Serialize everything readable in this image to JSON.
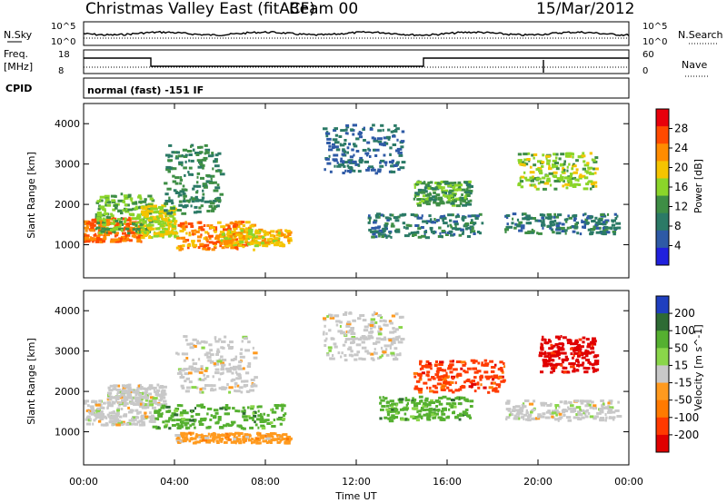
{
  "header": {
    "title": "Christmas Valley East (fitACF)",
    "beam": "Beam 00",
    "date": "15/Mar/2012"
  },
  "strips": {
    "nsky_label": "N.Sky",
    "nsearch_label": "N.Search",
    "noise_ticks": [
      "10^5",
      "10^0"
    ],
    "noise_ticks_right": [
      "10^5",
      "10^0"
    ],
    "freq_label": "Freq.",
    "freq_unit": "[MHz]",
    "freq_ticks": [
      "18",
      "8"
    ],
    "nave_label": "Nave",
    "nave_ticks": [
      "60",
      "0"
    ],
    "cpid_label": "CPID",
    "cpid_text": "normal (fast) -151 IF"
  },
  "chart_data": [
    {
      "type": "heatmap",
      "name": "power",
      "ylabel": "Slant Range [km]",
      "yticks": [
        "4000",
        "3000",
        "2000",
        "1000"
      ],
      "ylim": [
        180,
        4500
      ],
      "colorbar": {
        "label": "Power [dB]",
        "ticks": [
          "28",
          "24",
          "20",
          "16",
          "12",
          "8",
          "4"
        ],
        "colors": [
          "#e8000b",
          "#ff4a00",
          "#ff8c00",
          "#f5c400",
          "#8bd52a",
          "#3e8e45",
          "#2b7a66",
          "#2e5aa6",
          "#2020dd"
        ]
      },
      "regions": [
        {
          "t": [
            0.0,
            2.5
          ],
          "r": [
            1100,
            1700
          ],
          "level": 26
        },
        {
          "t": [
            0.5,
            3.0
          ],
          "r": [
            1300,
            2300
          ],
          "level": 14
        },
        {
          "t": [
            2.5,
            4.0
          ],
          "r": [
            1200,
            2000
          ],
          "level": 18
        },
        {
          "t": [
            4.0,
            7.5
          ],
          "r": [
            900,
            1600
          ],
          "level": 24
        },
        {
          "t": [
            3.5,
            6.0
          ],
          "r": [
            1800,
            3500
          ],
          "level": 10
        },
        {
          "t": [
            6.0,
            9.0
          ],
          "r": [
            1000,
            1400
          ],
          "level": 20
        },
        {
          "t": [
            10.5,
            14.0
          ],
          "r": [
            2800,
            4000
          ],
          "level": 6
        },
        {
          "t": [
            12.5,
            17.5
          ],
          "r": [
            1200,
            1800
          ],
          "level": 8
        },
        {
          "t": [
            14.5,
            17.0
          ],
          "r": [
            2000,
            2600
          ],
          "level": 12
        },
        {
          "t": [
            18.5,
            23.5
          ],
          "r": [
            1300,
            1800
          ],
          "level": 8
        },
        {
          "t": [
            19.0,
            22.5
          ],
          "r": [
            2400,
            3300
          ],
          "level": 16
        }
      ]
    },
    {
      "type": "heatmap",
      "name": "velocity",
      "ylabel": "Slant Range [km]",
      "yticks": [
        "4000",
        "3000",
        "2000",
        "1000"
      ],
      "ylim": [
        180,
        4500
      ],
      "xlabel": "Time UT",
      "xticks": [
        "00:00",
        "04:00",
        "08:00",
        "12:00",
        "16:00",
        "20:00",
        "00:00"
      ],
      "colorbar": {
        "label": "Velocity [m s^-1]",
        "ticks": [
          "200",
          "100",
          "50",
          "15",
          "-15",
          "-50",
          "-100",
          "-200"
        ],
        "colors": [
          "#1f3fbf",
          "#2e6b34",
          "#55b030",
          "#8ad64a",
          "#c8c8c8",
          "#ff9a1e",
          "#ff7a00",
          "#ff3a00",
          "#e00000"
        ]
      },
      "regions": [
        {
          "t": [
            0.0,
            3.0
          ],
          "r": [
            1200,
            1800
          ],
          "v": 0
        },
        {
          "t": [
            1.0,
            3.5
          ],
          "r": [
            1700,
            2200
          ],
          "v": 5
        },
        {
          "t": [
            3.0,
            9.0
          ],
          "r": [
            1100,
            1700
          ],
          "v": 60
        },
        {
          "t": [
            4.0,
            9.0
          ],
          "r": [
            750,
            1000
          ],
          "v": -30
        },
        {
          "t": [
            4.0,
            7.5
          ],
          "r": [
            2000,
            3400
          ],
          "v": 0
        },
        {
          "t": [
            10.5,
            14.0
          ],
          "r": [
            2800,
            4000
          ],
          "v": 0
        },
        {
          "t": [
            13.0,
            17.0
          ],
          "r": [
            1300,
            1900
          ],
          "v": 60
        },
        {
          "t": [
            14.5,
            18.5
          ],
          "r": [
            2000,
            2800
          ],
          "v": -180
        },
        {
          "t": [
            18.5,
            23.5
          ],
          "r": [
            1300,
            1800
          ],
          "v": 0
        },
        {
          "t": [
            20.0,
            22.5
          ],
          "r": [
            2500,
            3400
          ],
          "v": -200
        }
      ]
    }
  ]
}
